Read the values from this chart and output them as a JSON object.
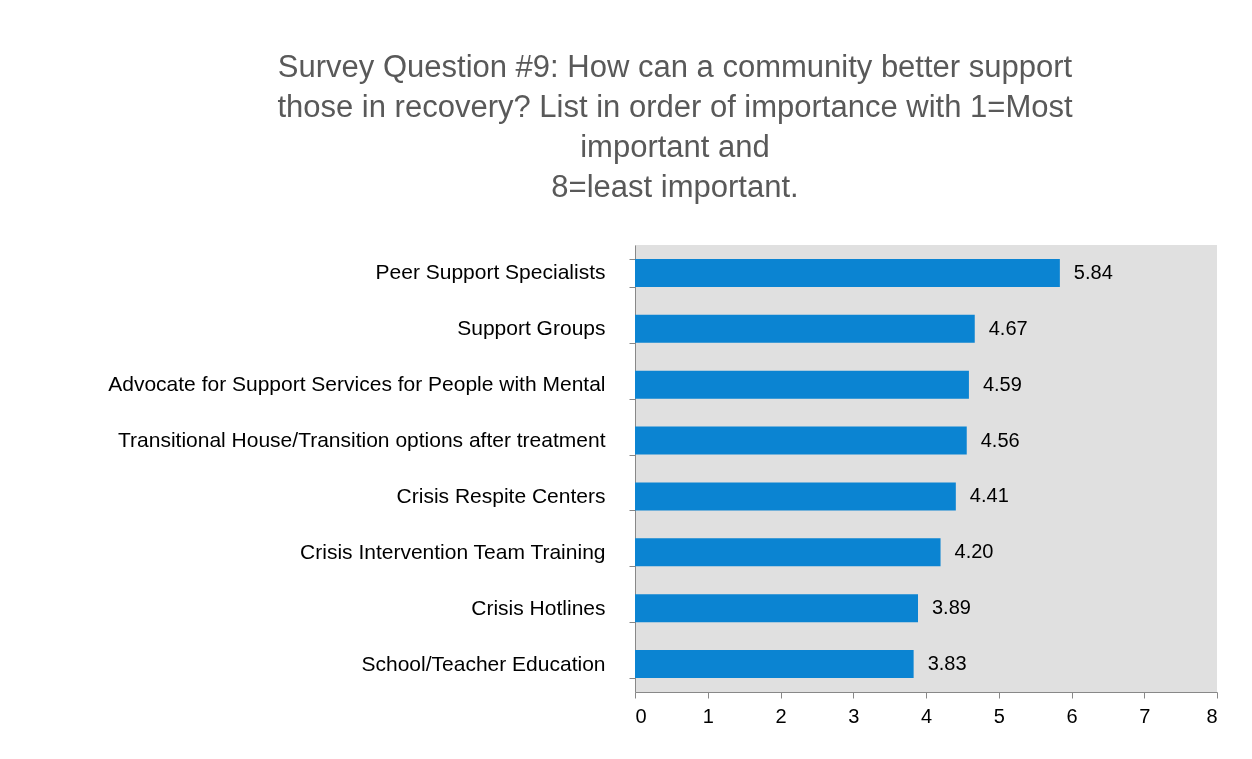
{
  "chart_data": {
    "type": "bar",
    "orientation": "horizontal",
    "title": "Survey Question #9:  How can a community better support\nthose in recovery? List in order of importance with 1=Most\nimportant and\n8=least important.",
    "categories": [
      "Peer Support Specialists",
      "Support Groups",
      "Advocate for Support Services for People with Mental",
      "Transitional House/Transition options after treatment",
      "Crisis Respite Centers",
      "Crisis Intervention Team Training",
      "Crisis Hotlines",
      "School/Teacher Education"
    ],
    "values": [
      5.84,
      4.67,
      4.59,
      4.56,
      4.41,
      4.2,
      3.89,
      3.83
    ],
    "value_labels": [
      "5.84",
      "4.67",
      "4.59",
      "4.56",
      "4.41",
      "4.20",
      "3.89",
      "3.83"
    ],
    "color": "#0b84d2",
    "xlim": [
      0,
      8
    ],
    "xticks": [
      0,
      1,
      2,
      3,
      4,
      5,
      6,
      7,
      8
    ],
    "grid": false
  }
}
